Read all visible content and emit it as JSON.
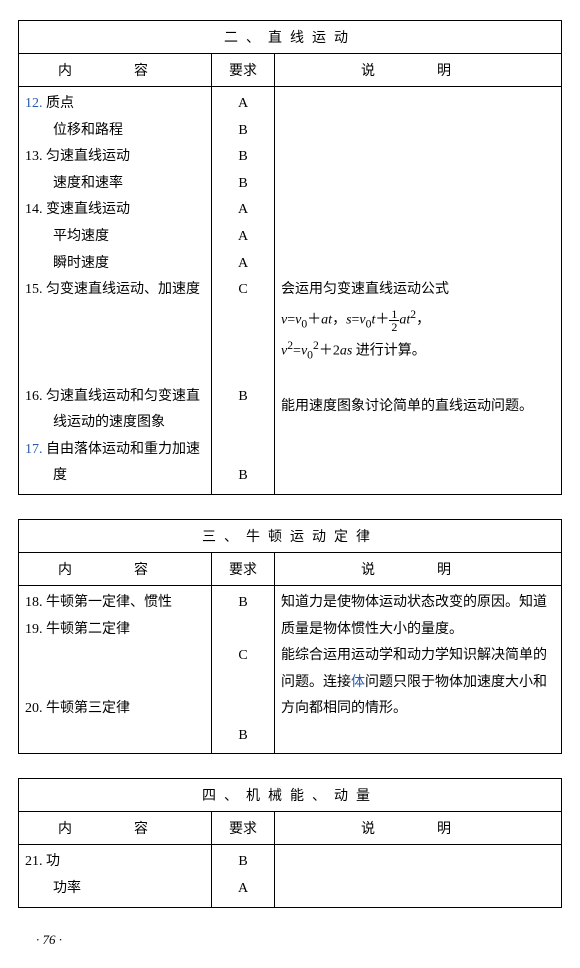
{
  "tables": [
    {
      "title": "二、直线运动",
      "head_content": "内　容",
      "head_req": "要求",
      "head_desc": "说　明",
      "content_html": "<span class='item'><span class='num'>12.</span> 质点</span><span class='sub'>位移和路程</span><span class='item'>13. 匀速直线运动</span><span class='sub'>速度和速率</span><span class='item'>14. 变速直线运动</span><span class='sub'>平均速度</span><span class='sub'>瞬时速度</span><span class='item'>15. 匀变速直线运动、加速度</span><br><br><br><span class='item'>16. 匀速直线运动和匀变速直线运动的速度图象</span><span class='item'><span class='num'>17.</span> 自由落体运动和重力加速度</span>",
      "req_html": "A<br>B<br>B<br>B<br>A<br>A<br>A<br>C<br><br><br><br>B<br><br><br>B",
      "desc_html": "<br><br><br><br><br><br><br>会运用匀变速直线运动公式<br><i>v</i>=<i>v</i><sub>0</sub>＋<i>at</i>，<i>s</i>=<i>v</i><sub>0</sub><i>t</i>＋<span class='frac'><span class='n'>1</span><span class='d'>2</span></span><i>at</i><sup>2</sup>，<br><i>v</i><sup>2</sup>=<i>v</i><sub>0</sub><sup>2</sup>＋2<i>as</i> 进行计算。<br><br>能用速度图象讨论简单的直线运动问题。"
    },
    {
      "title": "三、牛顿运动定律",
      "head_content": "内　容",
      "head_req": "要求",
      "head_desc": "说　明",
      "content_html": "<span class='item'>18. 牛顿第一定律、惯性</span><span class='item'>19. 牛顿第二定律</span><br><br><span class='item'>20. 牛顿第三定律</span>",
      "req_html": "B<br><br>C<br><br><br>B",
      "desc_html": "知道力是使物体运动状态改变的原因。知道质量是物体惯性大小的量度。<br>能综合运用运动学和动力学知识解决简单的问题。连接<span class='num'>体</span>问题只限于物体加速度大小和方向都相同的情形。"
    },
    {
      "title": "四、机械能、动量",
      "head_content": "内　容",
      "head_req": "要求",
      "head_desc": "说　明",
      "content_html": "<span class='item'>21. 功</span><span class='sub'>功率</span>",
      "req_html": "B<br>A",
      "desc_html": ""
    }
  ],
  "pagenum": "· 76 ·"
}
